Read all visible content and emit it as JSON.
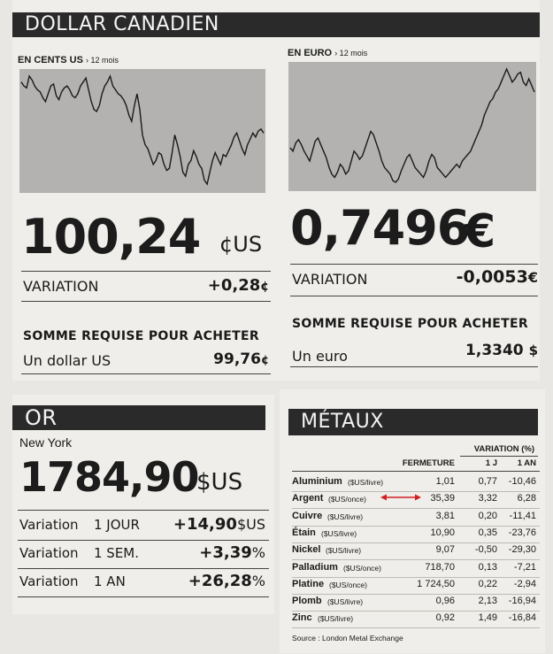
{
  "dollar": {
    "title": "DOLLAR CANADIEN",
    "us": {
      "subtitle": "EN CENTS US",
      "period": "› 12 mois",
      "series": [
        72,
        70,
        69,
        75,
        73,
        70,
        68,
        67,
        64,
        62,
        66,
        70,
        71,
        65,
        63,
        67,
        69,
        70,
        68,
        65,
        64,
        66,
        70,
        72,
        74,
        68,
        62,
        58,
        57,
        60,
        66,
        70,
        72,
        75,
        70,
        68,
        66,
        65,
        63,
        60,
        55,
        52,
        60,
        66,
        58,
        45,
        40,
        38,
        34,
        30,
        32,
        36,
        35,
        30,
        27,
        28,
        36,
        45,
        40,
        34,
        26,
        24,
        30,
        32,
        37,
        34,
        30,
        28,
        22,
        20,
        26,
        32,
        36,
        33,
        30,
        35,
        34,
        37,
        40,
        44,
        46,
        42,
        38,
        35,
        40,
        43,
        46,
        44,
        47,
        48,
        46
      ],
      "big_value": "100,24",
      "big_unit": "¢US",
      "variation_label": "VARIATION",
      "variation_value": "+0,28",
      "variation_unit": "¢",
      "somme_label": "SOMME REQUISE POUR ACHETER",
      "somme_item": "Un dollar US",
      "somme_value": "99,76",
      "somme_unit": "¢"
    },
    "euro": {
      "subtitle": "EN EURO",
      "period": "› 12 mois",
      "series": [
        52,
        50,
        55,
        57,
        54,
        50,
        47,
        44,
        50,
        56,
        58,
        54,
        50,
        46,
        40,
        36,
        34,
        37,
        42,
        40,
        36,
        38,
        44,
        50,
        48,
        45,
        47,
        52,
        57,
        62,
        60,
        55,
        50,
        44,
        40,
        38,
        36,
        32,
        31,
        33,
        38,
        42,
        46,
        48,
        44,
        40,
        38,
        36,
        34,
        38,
        44,
        48,
        46,
        40,
        38,
        36,
        34,
        36,
        38,
        40,
        42,
        40,
        44,
        46,
        48,
        50,
        54,
        58,
        62,
        66,
        72,
        76,
        80,
        82,
        86,
        88,
        92,
        96,
        100,
        96,
        92,
        94,
        97,
        98,
        92,
        90,
        94,
        90,
        86
      ],
      "big_value": "0,7496",
      "big_unit": "€",
      "variation_label": "VARIATION",
      "variation_value": "-0,0053",
      "variation_unit": "€",
      "somme_label": "SOMME REQUISE POUR ACHETER",
      "somme_item": "Un euro",
      "somme_value": "1,3340",
      "somme_unit": "$"
    }
  },
  "or": {
    "title": "OR",
    "place": "New York",
    "big_value": "1784,90",
    "big_unit": "$US",
    "rows": [
      {
        "label": "Variation",
        "period": "1 JOUR",
        "value": "+14,90",
        "unit": "$US"
      },
      {
        "label": "Variation",
        "period": "1 SEM.",
        "value": "+3,39",
        "unit": "%"
      },
      {
        "label": "Variation",
        "period": "1 AN",
        "value": "+26,28",
        "unit": "%"
      }
    ]
  },
  "metaux": {
    "title": "MÉTAUX",
    "head_variation": "VARIATION (%)",
    "head_fermeture": "FERMETURE",
    "head_1j": "1 J",
    "head_1an": "1 AN",
    "rows": [
      {
        "name": "Aluminium",
        "unit": "($US/livre)",
        "close": "1,01",
        "j": "0,77",
        "an": "-10,46"
      },
      {
        "name": "Argent",
        "unit": "($US/once)",
        "close": "35,39",
        "j": "3,32",
        "an": "6,28"
      },
      {
        "name": "Cuivre",
        "unit": "($US/livre)",
        "close": "3,81",
        "j": "0,20",
        "an": "-11,41"
      },
      {
        "name": "Étain",
        "unit": "($US/livre)",
        "close": "10,90",
        "j": "0,35",
        "an": "-23,76"
      },
      {
        "name": "Nickel",
        "unit": "($US/livre)",
        "close": "9,07",
        "j": "-0,50",
        "an": "-29,30"
      },
      {
        "name": "Palladium",
        "unit": "($US/once)",
        "close": "718,70",
        "j": "0,13",
        "an": "-7,21"
      },
      {
        "name": "Platine",
        "unit": "($US/once)",
        "close": "1 724,50",
        "j": "0,22",
        "an": "-2,94"
      },
      {
        "name": "Plomb",
        "unit": "($US/livre)",
        "close": "0,96",
        "j": "2,13",
        "an": "-16,94"
      },
      {
        "name": "Zinc",
        "unit": "($US/livre)",
        "close": "0,92",
        "j": "1,49",
        "an": "-16,84"
      }
    ],
    "source": "Source : London Metal Exchange"
  },
  "colors": {
    "banner": "#2a2a2a",
    "chart_bg": "#b3b2b0",
    "arrow": "#d22020"
  }
}
